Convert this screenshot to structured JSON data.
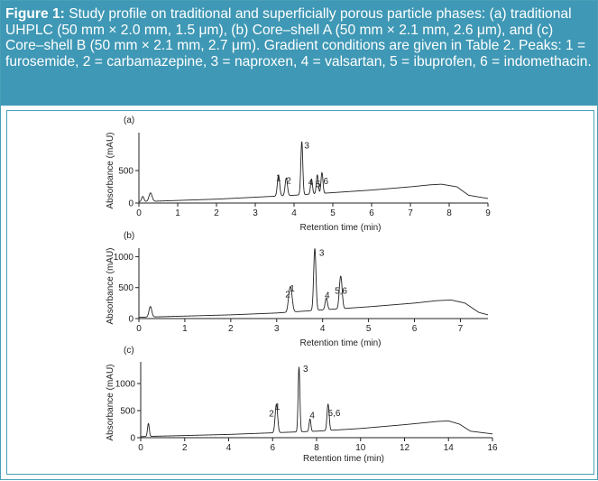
{
  "caption": {
    "label": "Figure 1:",
    "text": " Study profile on traditional and superficially porous particle phases: (a) traditional UHPLC (50 mm × 2.0 mm, 1.5 μm), (b) Core–shell A (50 mm × 2.1 mm, 2.6 μm), and (c) Core–shell B (50 mm × 2.1 mm, 2.7 μm). Gradient conditions are given in Table 2. Peaks: 1 = furosemide, 2 = carbamazepine, 3 = naproxen, 4 = valsartan, 5 = ibuprofen, 6 = indomethacin."
  },
  "chart_data": [
    {
      "type": "line",
      "panel_label": "(a)",
      "xlabel": "Retention time (min)",
      "ylabel": "Absorbance (mAU)",
      "xlim": [
        0,
        9
      ],
      "ylim": [
        0,
        1000
      ],
      "xticks": [
        0,
        1,
        2,
        3,
        4,
        5,
        6,
        7,
        8,
        9
      ],
      "yticks": [
        0,
        500
      ],
      "baseline": {
        "x": [
          0,
          0.5,
          1,
          2,
          3,
          4,
          5,
          6,
          7,
          7.5,
          7.8,
          8.2,
          8.5,
          9
        ],
        "y": [
          20,
          30,
          40,
          60,
          90,
          120,
          160,
          200,
          250,
          280,
          290,
          250,
          120,
          70
        ]
      },
      "peaks": [
        {
          "label": "",
          "x": 0.1,
          "y": 80,
          "w": 0.03
        },
        {
          "label": "",
          "x": 0.3,
          "y": 130,
          "w": 0.04
        },
        {
          "label": "1",
          "x": 3.6,
          "y": 320,
          "w": 0.03
        },
        {
          "label": "2",
          "x": 3.8,
          "y": 270,
          "w": 0.03
        },
        {
          "label": "3",
          "x": 4.2,
          "y": 820,
          "w": 0.025
        },
        {
          "label": "4",
          "x": 4.45,
          "y": 230,
          "w": 0.025
        },
        {
          "label": "5",
          "x": 4.6,
          "y": 290,
          "w": 0.025
        },
        {
          "label": "6",
          "x": 4.72,
          "y": 320,
          "w": 0.025
        }
      ],
      "peak_labels": [
        {
          "text": "1",
          "x": 3.6,
          "y": 340
        },
        {
          "text": "2",
          "x": 3.86,
          "y": 300
        },
        {
          "text": "3",
          "x": 4.33,
          "y": 840
        },
        {
          "text": "4",
          "x": 4.43,
          "y": 280
        },
        {
          "text": "5",
          "x": 4.62,
          "y": 240
        },
        {
          "text": "6",
          "x": 4.82,
          "y": 290
        }
      ]
    },
    {
      "type": "line",
      "panel_label": "(b)",
      "xlabel": "Retention time (min)",
      "ylabel": "Absorbance (mAU)",
      "xlim": [
        0,
        7.6
      ],
      "ylim": [
        0,
        1050
      ],
      "xticks": [
        0,
        1,
        2,
        3,
        4,
        5,
        6,
        7
      ],
      "yticks": [
        0,
        500,
        1000
      ],
      "baseline": {
        "x": [
          0,
          0.5,
          1,
          2,
          3,
          4,
          5,
          6,
          6.5,
          6.8,
          7.1,
          7.4,
          7.6
        ],
        "y": [
          20,
          30,
          40,
          60,
          90,
          140,
          190,
          250,
          290,
          300,
          250,
          100,
          60
        ]
      },
      "peaks": [
        {
          "label": "",
          "x": 0.25,
          "y": 170,
          "w": 0.03
        },
        {
          "label": "1",
          "x": 3.28,
          "y": 280,
          "w": 0.03
        },
        {
          "label": "2",
          "x": 3.32,
          "y": 230,
          "w": 0.03
        },
        {
          "label": "3",
          "x": 3.83,
          "y": 1000,
          "w": 0.025
        },
        {
          "label": "4",
          "x": 4.08,
          "y": 190,
          "w": 0.025
        },
        {
          "label": "5",
          "x": 4.38,
          "y": 330,
          "w": 0.025
        },
        {
          "label": "6",
          "x": 4.41,
          "y": 300,
          "w": 0.025
        }
      ],
      "peak_labels": [
        {
          "text": "1",
          "x": 3.34,
          "y": 440
        },
        {
          "text": "2",
          "x": 3.24,
          "y": 340
        },
        {
          "text": "3",
          "x": 3.98,
          "y": 1010
        },
        {
          "text": "4",
          "x": 4.1,
          "y": 330
        },
        {
          "text": "5,6",
          "x": 4.4,
          "y": 400
        }
      ]
    },
    {
      "type": "line",
      "panel_label": "(c)",
      "xlabel": "Retention time (min)",
      "ylabel": "Absorbance (mAU)",
      "xlim": [
        0,
        16
      ],
      "ylim": [
        0,
        1300
      ],
      "xticks": [
        0,
        2,
        4,
        6,
        8,
        10,
        12,
        14,
        16
      ],
      "yticks": [
        0,
        500,
        1000
      ],
      "baseline": {
        "x": [
          0,
          1,
          2,
          4,
          6,
          8,
          10,
          12,
          13.5,
          14,
          14.5,
          15,
          16
        ],
        "y": [
          20,
          30,
          40,
          60,
          90,
          120,
          170,
          240,
          300,
          310,
          250,
          120,
          70
        ]
      },
      "peaks": [
        {
          "label": "",
          "x": 0.35,
          "y": 240,
          "w": 0.04
        },
        {
          "label": "1",
          "x": 6.15,
          "y": 330,
          "w": 0.05
        },
        {
          "label": "2",
          "x": 6.2,
          "y": 260,
          "w": 0.05
        },
        {
          "label": "3",
          "x": 7.2,
          "y": 1200,
          "w": 0.04
        },
        {
          "label": "4",
          "x": 7.7,
          "y": 230,
          "w": 0.04
        },
        {
          "label": "5",
          "x": 8.5,
          "y": 310,
          "w": 0.04
        },
        {
          "label": "6",
          "x": 8.55,
          "y": 280,
          "w": 0.04
        }
      ],
      "peak_labels": [
        {
          "text": "1",
          "x": 6.22,
          "y": 520
        },
        {
          "text": "2",
          "x": 5.95,
          "y": 390
        },
        {
          "text": "3",
          "x": 7.5,
          "y": 1220
        },
        {
          "text": "4",
          "x": 7.8,
          "y": 360
        },
        {
          "text": "5,6",
          "x": 8.8,
          "y": 400
        }
      ]
    }
  ]
}
